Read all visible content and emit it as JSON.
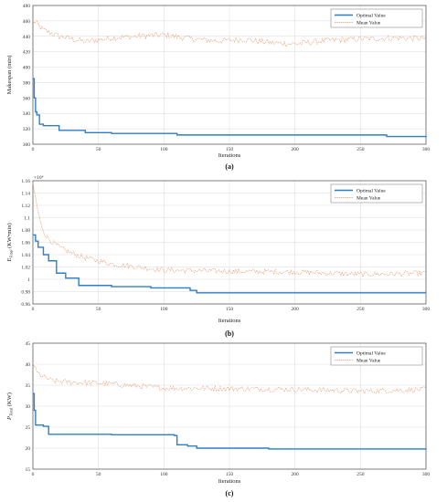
{
  "chart_data": [
    {
      "type": "line",
      "caption": "(a)",
      "xlabel": "Iterations",
      "ylabel": "Makespan (min)",
      "xlim": [
        0,
        300
      ],
      "ylim": [
        300,
        480
      ],
      "xticks": [
        "0",
        "50",
        "100",
        "150",
        "200",
        "250",
        "300"
      ],
      "yticks": [
        "300",
        "320",
        "340",
        "360",
        "380",
        "400",
        "420",
        "440",
        "460",
        "480"
      ],
      "grid": true,
      "legend_position": "top-right",
      "series": [
        {
          "name": "Optimal Value",
          "style": "step",
          "color": "#2f7fc8",
          "x": [
            0,
            1,
            2,
            3,
            5,
            8,
            20,
            40,
            60,
            110,
            270,
            300
          ],
          "y": [
            385,
            360,
            342,
            338,
            326,
            324,
            318,
            315,
            314,
            312,
            310,
            309
          ]
        },
        {
          "name": "Mean Value",
          "style": "noisy",
          "color": "#e8956e",
          "x": [
            0,
            3,
            8,
            20,
            40,
            60,
            80,
            100,
            120,
            140,
            160,
            180,
            200,
            220,
            240,
            260,
            280,
            300
          ],
          "y": [
            460,
            456,
            448,
            440,
            433,
            438,
            440,
            442,
            437,
            434,
            436,
            432,
            430,
            434,
            436,
            437,
            438,
            437
          ]
        }
      ]
    },
    {
      "type": "line",
      "caption": "(b)",
      "xlabel": "Iterations",
      "ylabel_main": "E",
      "ylabel_sub": "Total",
      "ylabel_unit": " (KW•min)",
      "exponent": "×10⁴",
      "xlim": [
        0,
        300
      ],
      "ylim": [
        0.96,
        1.16
      ],
      "xticks": [
        "0",
        "50",
        "100",
        "150",
        "200",
        "250",
        "300"
      ],
      "yticks": [
        "0.96",
        "0.98",
        "1",
        "1.02",
        "1.04",
        "1.06",
        "1.08",
        "1.1",
        "1.12",
        "1.14",
        "1.16"
      ],
      "grid": true,
      "legend_position": "top-right",
      "series": [
        {
          "name": "Optimal Value",
          "style": "step",
          "color": "#2f7fc8",
          "x": [
            0,
            2,
            4,
            8,
            12,
            18,
            25,
            35,
            60,
            90,
            120,
            125,
            300
          ],
          "y": [
            1.072,
            1.062,
            1.052,
            1.04,
            1.03,
            1.01,
            1.002,
            0.99,
            0.988,
            0.986,
            0.982,
            0.978,
            0.978
          ]
        },
        {
          "name": "Mean Value",
          "style": "noisy",
          "color": "#e8956e",
          "x": [
            0,
            3,
            6,
            10,
            15,
            20,
            30,
            40,
            50,
            60,
            80,
            100,
            125,
            150,
            200,
            250,
            280,
            300
          ],
          "y": [
            1.155,
            1.12,
            1.09,
            1.07,
            1.06,
            1.052,
            1.042,
            1.035,
            1.03,
            1.025,
            1.02,
            1.015,
            1.014,
            1.013,
            1.012,
            1.008,
            1.009,
            1.01
          ]
        }
      ]
    },
    {
      "type": "line",
      "caption": "(c)",
      "xlabel": "Iterations",
      "ylabel_main": "P",
      "ylabel_sub": "Total",
      "ylabel_unit": " (KW)",
      "xlim": [
        0,
        300
      ],
      "ylim": [
        15,
        45
      ],
      "xticks": [
        "0",
        "50",
        "100",
        "150",
        "200",
        "250",
        "300"
      ],
      "yticks": [
        "15",
        "20",
        "25",
        "30",
        "35",
        "40",
        "45"
      ],
      "grid": true,
      "legend_position": "top-right",
      "series": [
        {
          "name": "Optimal Value",
          "style": "step",
          "color": "#2f7fc8",
          "x": [
            0,
            1,
            2,
            8,
            12,
            60,
            108,
            110,
            118,
            125,
            180,
            240,
            300
          ],
          "y": [
            33,
            29,
            25.5,
            25.2,
            23.3,
            23.2,
            23,
            20.8,
            20.5,
            20.0,
            19.8,
            19.8,
            19.7
          ]
        },
        {
          "name": "Mean Value",
          "style": "noisy",
          "color": "#e8956e",
          "x": [
            0,
            3,
            8,
            15,
            30,
            50,
            80,
            100,
            150,
            200,
            250,
            280,
            300
          ],
          "y": [
            40.5,
            38,
            37,
            36,
            35.7,
            35.5,
            34.8,
            34.3,
            34.2,
            34.0,
            33.6,
            33.8,
            34.0
          ]
        }
      ]
    }
  ]
}
